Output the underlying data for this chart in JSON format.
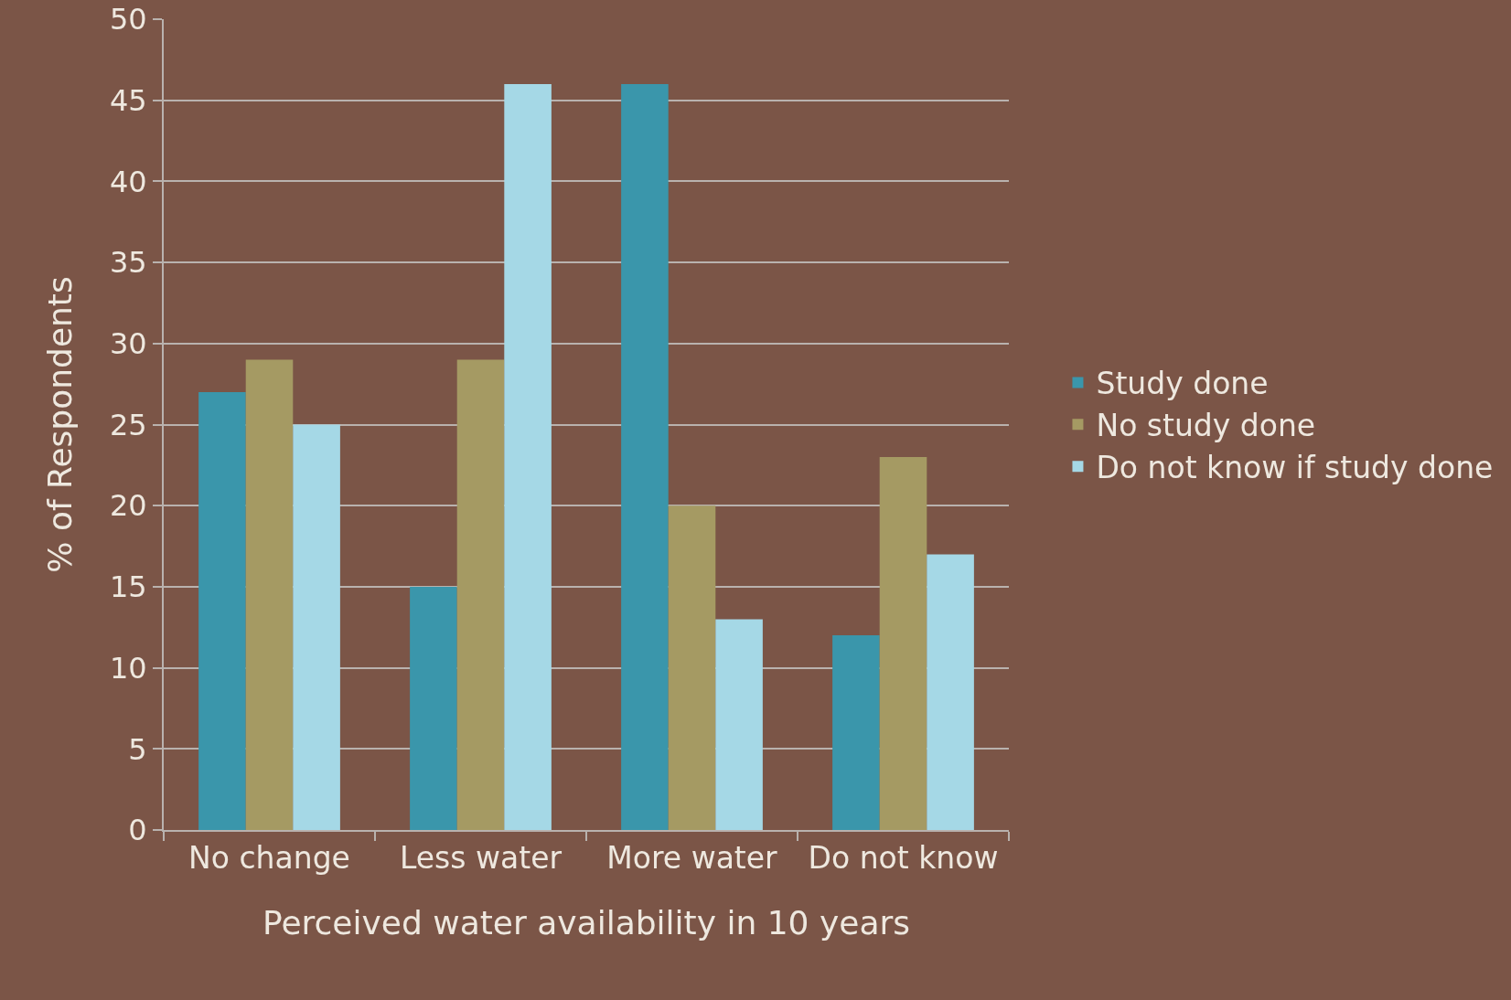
{
  "chart_data": {
    "type": "bar",
    "xlabel": "Perceived water availability in 10 years",
    "ylabel": "% of Respondents",
    "categories": [
      "No change",
      "Less water",
      "More water",
      "Do not know"
    ],
    "series": [
      {
        "name": "Study done",
        "color": "#3a96ab",
        "values": [
          27,
          15,
          46,
          12
        ]
      },
      {
        "name": "No study done",
        "color": "#a59a63",
        "values": [
          29,
          29,
          20,
          23
        ]
      },
      {
        "name": "Do not know if study done",
        "color": "#a5d8e6",
        "values": [
          25,
          46,
          13,
          17
        ]
      }
    ],
    "ylim": [
      0,
      50
    ],
    "yticks": [
      0,
      5,
      10,
      15,
      20,
      25,
      30,
      35,
      40,
      45,
      50
    ],
    "grid": "y",
    "legend": "right"
  }
}
